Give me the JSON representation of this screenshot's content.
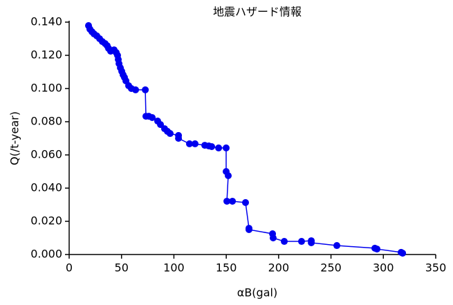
{
  "chart_data": {
    "type": "line",
    "title": "地震ハザード情報",
    "x_label": "αB(gal)",
    "y_label": "Q(/t-year)",
    "series": [
      {
        "color": "#0000ee",
        "x": [
          18.5,
          19.8,
          21.8,
          23.8,
          26.4,
          29.1,
          31.7,
          34.3,
          36.3,
          37.6,
          39.6,
          42.9,
          44.9,
          46.2,
          46.9,
          47.6,
          48.9,
          50.2,
          51.5,
          52.8,
          54.2,
          56.8,
          59.4,
          63.4,
          72.7,
          73.3,
          76.0,
          79.3,
          84.5,
          87.2,
          91.1,
          93.8,
          96.4,
          104.4,
          104.4,
          114.9,
          120.2,
          129.5,
          133.4,
          136.1,
          142.7,
          149.9,
          149.9,
          151.9,
          150.6,
          155.9,
          168.4,
          171.7,
          171.7,
          194.2,
          194.8,
          205.4,
          221.9,
          231.2,
          231.2,
          255.6,
          291.9,
          293.9,
          317.0,
          318.4
        ],
        "values": [
          0.1379,
          0.1358,
          0.1342,
          0.1329,
          0.1317,
          0.13,
          0.1283,
          0.1271,
          0.1258,
          0.1242,
          0.1225,
          0.1233,
          0.1217,
          0.12,
          0.1175,
          0.115,
          0.1125,
          0.1104,
          0.1083,
          0.1067,
          0.1046,
          0.1017,
          0.1,
          0.0992,
          0.0992,
          0.0833,
          0.0833,
          0.0825,
          0.0804,
          0.0783,
          0.0758,
          0.0742,
          0.0729,
          0.0717,
          0.07,
          0.0667,
          0.0667,
          0.0658,
          0.0654,
          0.065,
          0.0642,
          0.0642,
          0.05,
          0.0475,
          0.0321,
          0.0321,
          0.0313,
          0.0158,
          0.015,
          0.0125,
          0.01,
          0.0079,
          0.0079,
          0.0083,
          0.0071,
          0.0054,
          0.0038,
          0.0033,
          0.0013,
          0.0008
        ]
      }
    ],
    "xlim": [
      0,
      350
    ],
    "xticks": [
      0,
      50,
      100,
      150,
      200,
      250,
      300,
      350
    ],
    "ylim": [
      0,
      0.14
    ],
    "yticks": [
      {
        "value": 0,
        "label": "0.000"
      },
      {
        "value": 0.02,
        "label": "0.020"
      },
      {
        "value": 0.04,
        "label": "0.040"
      },
      {
        "value": 0.06,
        "label": "0.060"
      },
      {
        "value": 0.08,
        "label": "0.080"
      },
      {
        "value": 0.1,
        "label": "0.100"
      },
      {
        "value": 0.12,
        "label": "0.120"
      },
      {
        "value": 0.14,
        "label": "0.140"
      }
    ]
  }
}
